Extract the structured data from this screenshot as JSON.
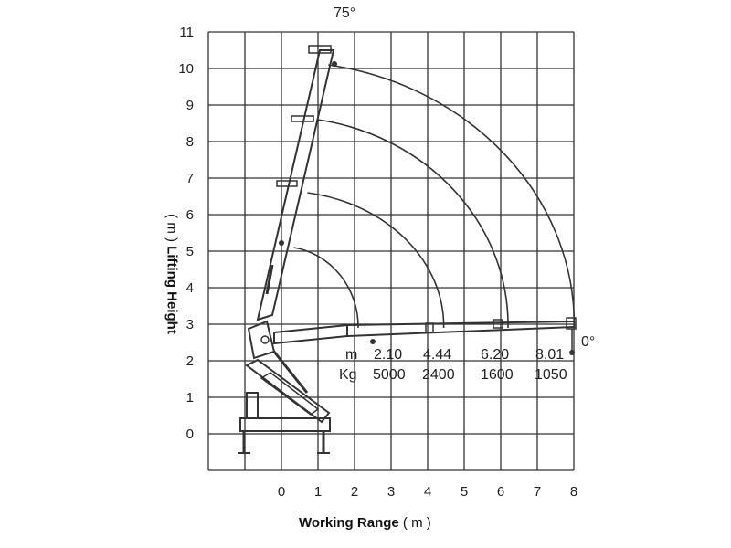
{
  "chart_data": {
    "type": "line",
    "xlabel": "Working Range",
    "xunit": "( m )",
    "ylabel": "Lifting Height",
    "yunit": "( m )",
    "xlim": [
      -2,
      8
    ],
    "ylim": [
      -1,
      11
    ],
    "x_ticks": [
      "0",
      "1",
      "2",
      "3",
      "4",
      "5",
      "6",
      "7",
      "8"
    ],
    "y_ticks": [
      "0",
      "1",
      "2",
      "3",
      "4",
      "5",
      "6",
      "7",
      "8",
      "9",
      "10",
      "11"
    ],
    "grid": true,
    "angle_labels": {
      "max": "75°",
      "min": "0°"
    },
    "load_table": {
      "row_labels": [
        "m",
        "Kg"
      ],
      "reach_m": [
        "2.10",
        "4.44",
        "6.20",
        "8.01"
      ],
      "load_kg": [
        "5000",
        "2400",
        "1600",
        "1050"
      ]
    },
    "reach_arcs": [
      {
        "reach": 2.1,
        "height_at_75deg": 5.1
      },
      {
        "reach": 4.44,
        "height_at_75deg": 6.6
      },
      {
        "reach": 6.2,
        "height_at_75deg": 8.6
      },
      {
        "reach": 8.01,
        "height_at_75deg": 10.1
      }
    ]
  }
}
